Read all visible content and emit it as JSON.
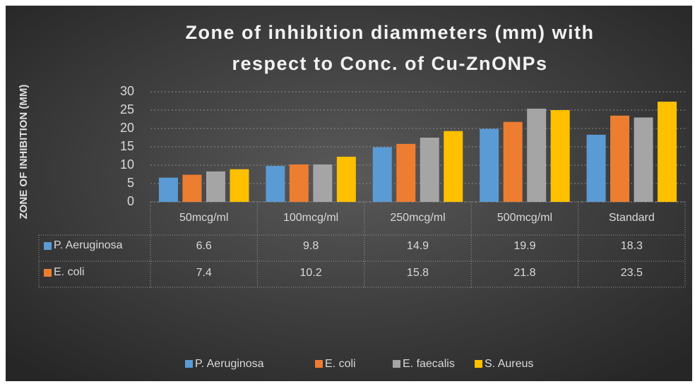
{
  "chart_data": {
    "type": "bar",
    "title": [
      "Zone of inhibition diammeters (mm) with",
      "respect to Conc. of Cu-ZnONPs"
    ],
    "y_label": "ZONE OF INHIBITION (MM)",
    "categories": [
      "50mcg/ml",
      "100mcg/ml",
      "250mcg/ml",
      "500mcg/ml",
      "Standard"
    ],
    "series": [
      {
        "name": "P. Aeruginosa",
        "color": "#5b9bd5",
        "values": [
          6.6,
          9.8,
          14.9,
          19.9,
          18.3
        ]
      },
      {
        "name": "E. coli",
        "color": "#ed7d31",
        "values": [
          7.4,
          10.2,
          15.8,
          21.8,
          23.5
        ]
      },
      {
        "name": "E. faecalis",
        "color": "#a5a5a5",
        "values": [
          8.3,
          10.2,
          17.5,
          25.4,
          23.0
        ]
      },
      {
        "name": "S. Aureus",
        "color": "#ffc000",
        "values": [
          8.9,
          12.3,
          19.3,
          25.0,
          27.3
        ]
      }
    ],
    "table_series": [
      0,
      1
    ],
    "ylim": [
      0,
      30
    ],
    "yticks": [
      0,
      5,
      10,
      15,
      20,
      25,
      30
    ],
    "grid": true,
    "legend": "bottom"
  }
}
